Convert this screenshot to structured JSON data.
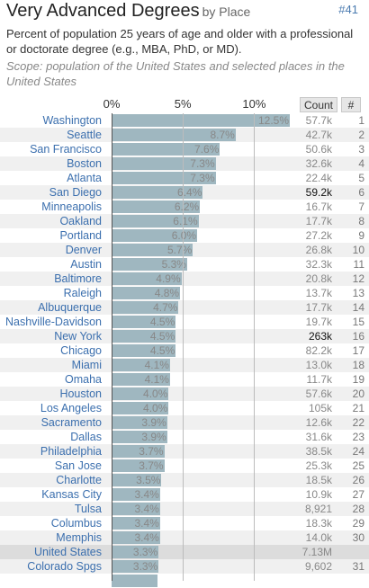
{
  "header": {
    "title": "Very Advanced Degrees",
    "subtitle": "by Place",
    "rank_badge": "#41"
  },
  "description": "Percent of population 25 years of age and older with a professional or doctorate degree (e.g., MBA, PhD, or MD).",
  "scope": "Scope: population of the United States and selected places in the United States",
  "columns": {
    "count": "Count",
    "rank": "#"
  },
  "colors": {
    "bar": "#9fb7c0",
    "link": "#3b6fae",
    "highlight_row": "#dcdcdc",
    "alt_row": "#f0f0f0"
  },
  "chart_data": {
    "type": "bar",
    "orientation": "horizontal",
    "x_ticks": [
      "0%",
      "5%",
      "10%"
    ],
    "x_tick_values": [
      0,
      5,
      10
    ],
    "xlim": [
      0,
      12.5
    ],
    "grid": true,
    "rows": [
      {
        "place": "Washington",
        "pct": 12.5,
        "label": "12.5%",
        "count": "57.7k",
        "rank": "1",
        "count_dark": false
      },
      {
        "place": "Seattle",
        "pct": 8.7,
        "label": "8.7%",
        "count": "42.7k",
        "rank": "2",
        "count_dark": false
      },
      {
        "place": "San Francisco",
        "pct": 7.6,
        "label": "7.6%",
        "count": "50.6k",
        "rank": "3",
        "count_dark": false
      },
      {
        "place": "Boston",
        "pct": 7.3,
        "label": "7.3%",
        "count": "32.6k",
        "rank": "4",
        "count_dark": false
      },
      {
        "place": "Atlanta",
        "pct": 7.3,
        "label": "7.3%",
        "count": "22.4k",
        "rank": "5",
        "count_dark": false
      },
      {
        "place": "San Diego",
        "pct": 6.4,
        "label": "6.4%",
        "count": "59.2k",
        "rank": "6",
        "count_dark": true
      },
      {
        "place": "Minneapolis",
        "pct": 6.2,
        "label": "6.2%",
        "count": "16.7k",
        "rank": "7",
        "count_dark": false
      },
      {
        "place": "Oakland",
        "pct": 6.1,
        "label": "6.1%",
        "count": "17.7k",
        "rank": "8",
        "count_dark": false
      },
      {
        "place": "Portland",
        "pct": 6.0,
        "label": "6.0%",
        "count": "27.2k",
        "rank": "9",
        "count_dark": false
      },
      {
        "place": "Denver",
        "pct": 5.7,
        "label": "5.7%",
        "count": "26.8k",
        "rank": "10",
        "count_dark": false
      },
      {
        "place": "Austin",
        "pct": 5.3,
        "label": "5.3%",
        "count": "32.3k",
        "rank": "11",
        "count_dark": false
      },
      {
        "place": "Baltimore",
        "pct": 4.9,
        "label": "4.9%",
        "count": "20.8k",
        "rank": "12",
        "count_dark": false
      },
      {
        "place": "Raleigh",
        "pct": 4.8,
        "label": "4.8%",
        "count": "13.7k",
        "rank": "13",
        "count_dark": false
      },
      {
        "place": "Albuquerque",
        "pct": 4.7,
        "label": "4.7%",
        "count": "17.7k",
        "rank": "14",
        "count_dark": false
      },
      {
        "place": "Nashville-Davidson",
        "pct": 4.5,
        "label": "4.5%",
        "count": "19.7k",
        "rank": "15",
        "count_dark": false
      },
      {
        "place": "New York",
        "pct": 4.5,
        "label": "4.5%",
        "count": "263k",
        "rank": "16",
        "count_dark": true
      },
      {
        "place": "Chicago",
        "pct": 4.5,
        "label": "4.5%",
        "count": "82.2k",
        "rank": "17",
        "count_dark": false
      },
      {
        "place": "Miami",
        "pct": 4.1,
        "label": "4.1%",
        "count": "13.0k",
        "rank": "18",
        "count_dark": false
      },
      {
        "place": "Omaha",
        "pct": 4.1,
        "label": "4.1%",
        "count": "11.7k",
        "rank": "19",
        "count_dark": false
      },
      {
        "place": "Houston",
        "pct": 4.0,
        "label": "4.0%",
        "count": "57.6k",
        "rank": "20",
        "count_dark": false
      },
      {
        "place": "Los Angeles",
        "pct": 4.0,
        "label": "4.0%",
        "count": "105k",
        "rank": "21",
        "count_dark": false
      },
      {
        "place": "Sacramento",
        "pct": 3.9,
        "label": "3.9%",
        "count": "12.6k",
        "rank": "22",
        "count_dark": false
      },
      {
        "place": "Dallas",
        "pct": 3.9,
        "label": "3.9%",
        "count": "31.6k",
        "rank": "23",
        "count_dark": false
      },
      {
        "place": "Philadelphia",
        "pct": 3.7,
        "label": "3.7%",
        "count": "38.5k",
        "rank": "24",
        "count_dark": false
      },
      {
        "place": "San Jose",
        "pct": 3.7,
        "label": "3.7%",
        "count": "25.3k",
        "rank": "25",
        "count_dark": false
      },
      {
        "place": "Charlotte",
        "pct": 3.5,
        "label": "3.5%",
        "count": "18.5k",
        "rank": "26",
        "count_dark": false
      },
      {
        "place": "Kansas City",
        "pct": 3.4,
        "label": "3.4%",
        "count": "10.9k",
        "rank": "27",
        "count_dark": false
      },
      {
        "place": "Tulsa",
        "pct": 3.4,
        "label": "3.4%",
        "count": "8,921",
        "rank": "28",
        "count_dark": false
      },
      {
        "place": "Columbus",
        "pct": 3.4,
        "label": "3.4%",
        "count": "18.3k",
        "rank": "29",
        "count_dark": false
      },
      {
        "place": "Memphis",
        "pct": 3.4,
        "label": "3.4%",
        "count": "14.0k",
        "rank": "30",
        "count_dark": false
      },
      {
        "place": "United States",
        "pct": 3.3,
        "label": "3.3%",
        "count": "7.13M",
        "rank": "",
        "count_dark": false,
        "highlight": true
      },
      {
        "place": "Colorado Spgs",
        "pct": 3.3,
        "label": "3.3%",
        "count": "9,602",
        "rank": "31",
        "count_dark": false
      },
      {
        "place": "",
        "pct": 3.2,
        "label": "",
        "count": "",
        "rank": "",
        "count_dark": false
      }
    ]
  }
}
